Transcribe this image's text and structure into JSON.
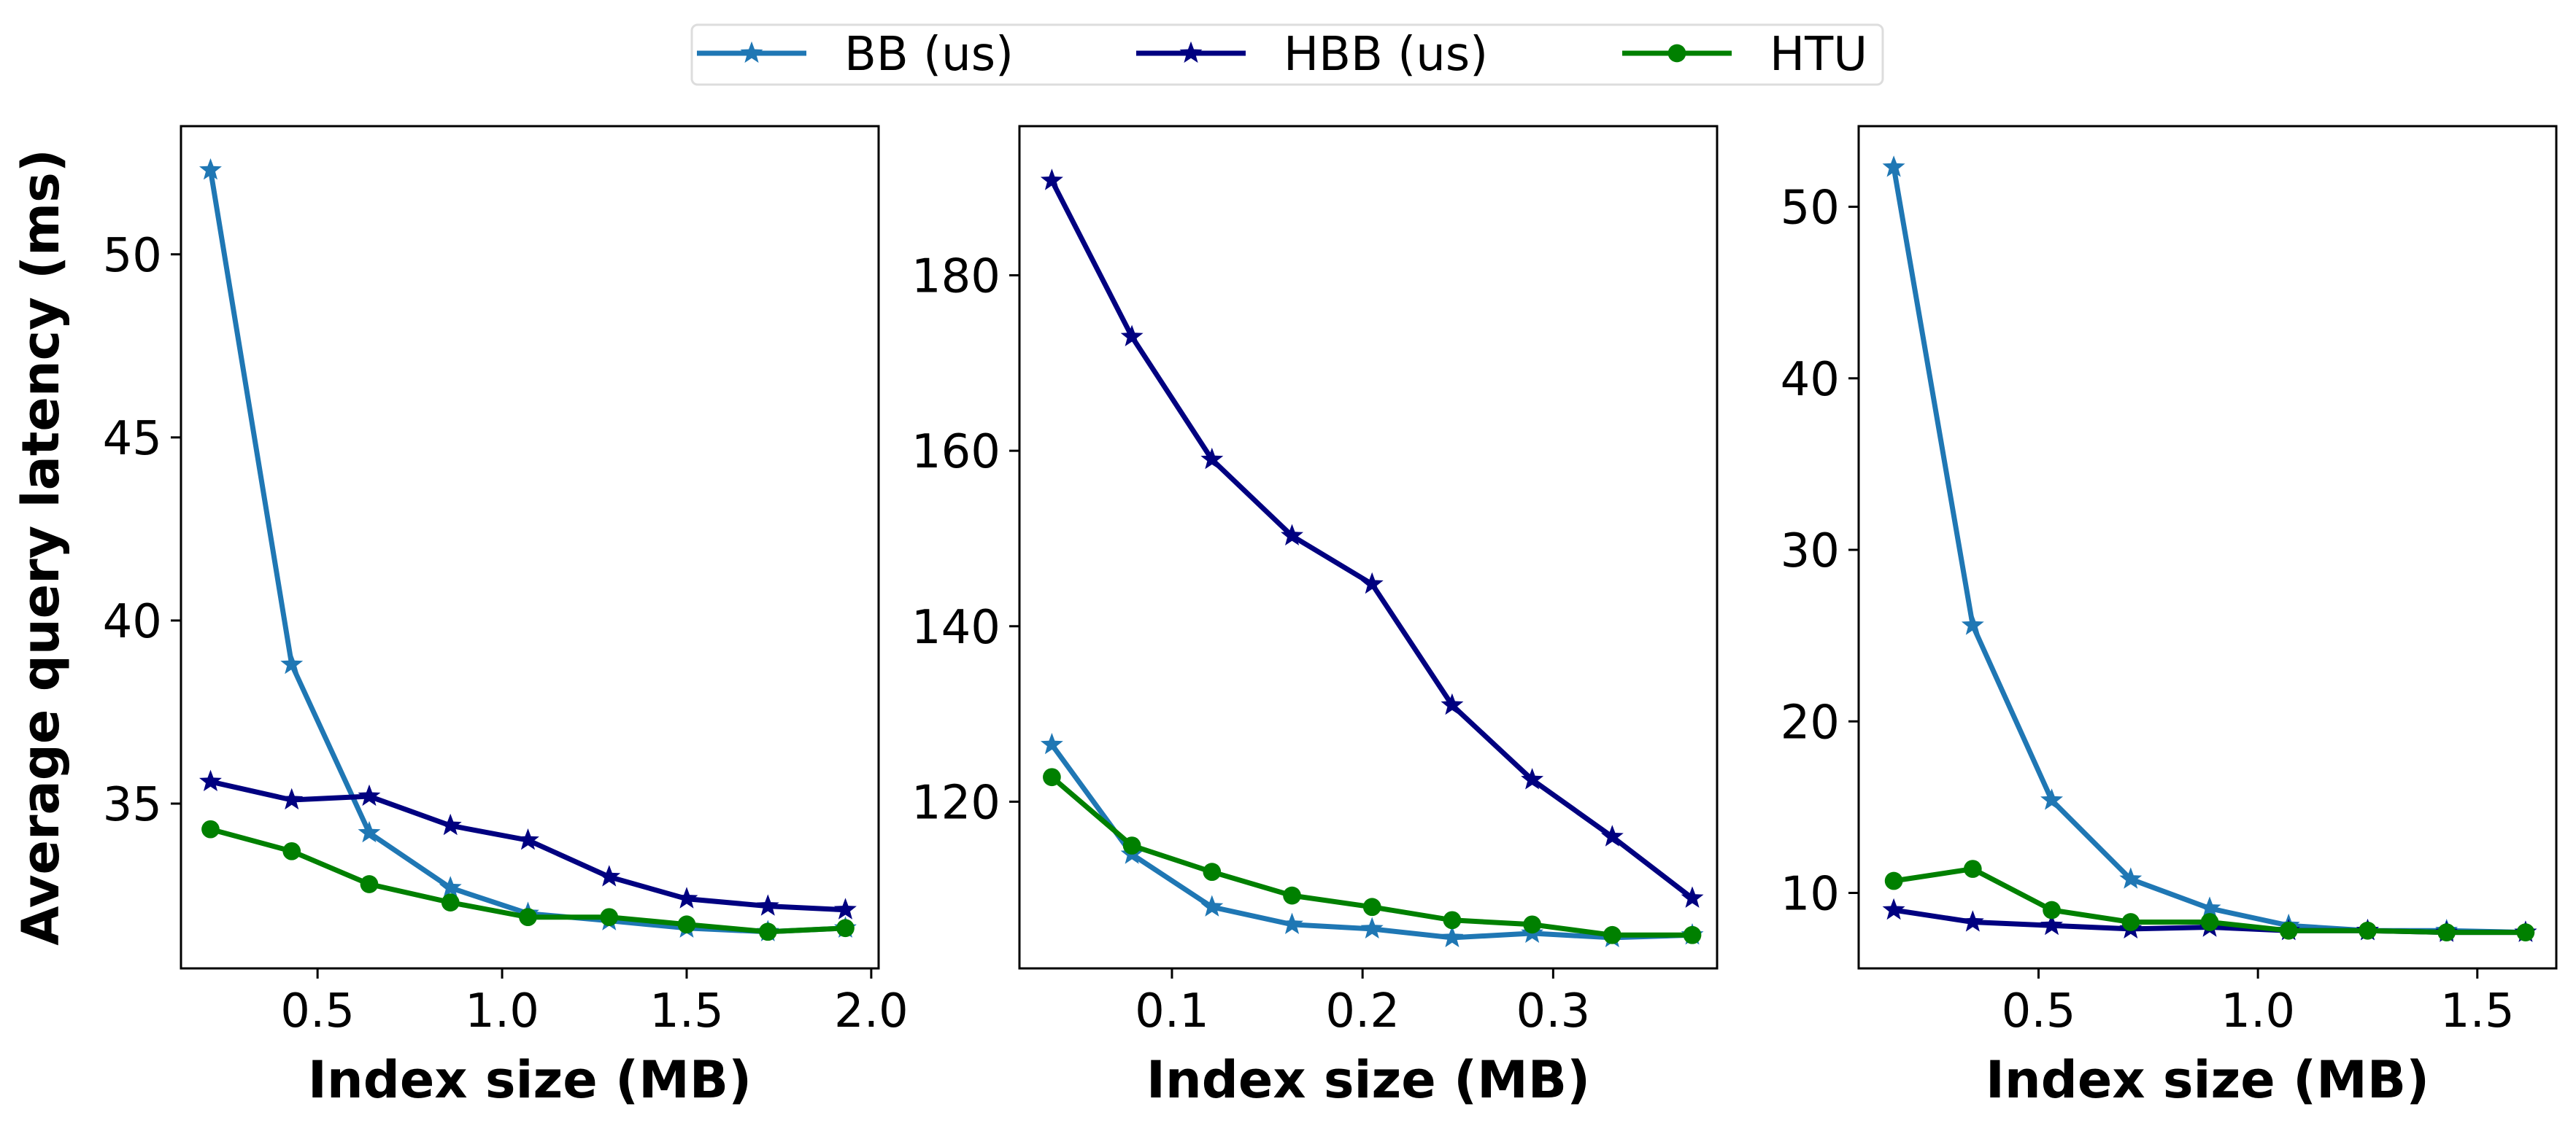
{
  "legend": {
    "placement": "top-center",
    "entries": [
      {
        "name": "BB (us)",
        "color": "#1f77b4",
        "marker": "star"
      },
      {
        "name": "HBB (us)",
        "color": "#000080",
        "marker": "star"
      },
      {
        "name": "HTU",
        "color": "#008000",
        "marker": "circle"
      }
    ]
  },
  "chart_data": [
    {
      "type": "line",
      "title": "",
      "xlabel": "Index size (MB)",
      "ylabel": "Average query latency (ms)",
      "xlim": [
        0.13,
        2.02
      ],
      "ylim": [
        30.5,
        53.5
      ],
      "xticks": [
        0.5,
        1.0,
        1.5,
        2.0
      ],
      "xtick_labels": [
        "0.5",
        "1.0",
        "1.5",
        "2.0"
      ],
      "yticks": [
        35,
        40,
        45,
        50
      ],
      "ytick_labels": [
        "35",
        "40",
        "45",
        "50"
      ],
      "grid": false,
      "series": [
        {
          "name": "BB (us)",
          "color": "#1f77b4",
          "marker": "star",
          "x": [
            0.21,
            0.43,
            0.64,
            0.86,
            1.07,
            1.29,
            1.5,
            1.72,
            1.93
          ],
          "y": [
            52.3,
            38.8,
            34.2,
            32.7,
            32.0,
            31.8,
            31.6,
            31.5,
            31.6
          ]
        },
        {
          "name": "HBB (us)",
          "color": "#000080",
          "marker": "star",
          "x": [
            0.21,
            0.43,
            0.64,
            0.86,
            1.07,
            1.29,
            1.5,
            1.72,
            1.93
          ],
          "y": [
            35.6,
            35.1,
            35.2,
            34.4,
            34.0,
            33.0,
            32.4,
            32.2,
            32.1
          ]
        },
        {
          "name": "HTU",
          "color": "#008000",
          "marker": "circle",
          "x": [
            0.21,
            0.43,
            0.64,
            0.86,
            1.07,
            1.29,
            1.5,
            1.72,
            1.93
          ],
          "y": [
            34.3,
            33.7,
            32.8,
            32.3,
            31.9,
            31.9,
            31.7,
            31.5,
            31.6
          ]
        }
      ]
    },
    {
      "type": "line",
      "title": "",
      "xlabel": "Index size (MB)",
      "ylabel": "",
      "xlim": [
        0.02,
        0.386
      ],
      "ylim": [
        101,
        197
      ],
      "xticks": [
        0.1,
        0.2,
        0.3
      ],
      "xtick_labels": [
        "0.1",
        "0.2",
        "0.3"
      ],
      "yticks": [
        120,
        140,
        160,
        180
      ],
      "ytick_labels": [
        "120",
        "140",
        "160",
        "180"
      ],
      "grid": false,
      "series": [
        {
          "name": "BB (us)",
          "color": "#1f77b4",
          "marker": "star",
          "x": [
            0.037,
            0.079,
            0.121,
            0.163,
            0.205,
            0.247,
            0.289,
            0.331,
            0.373
          ],
          "y": [
            126.5,
            114.0,
            108.0,
            106.0,
            105.5,
            104.5,
            105.0,
            104.5,
            104.8
          ]
        },
        {
          "name": "HBB (us)",
          "color": "#000080",
          "marker": "star",
          "x": [
            0.037,
            0.079,
            0.121,
            0.163,
            0.205,
            0.247,
            0.289,
            0.331,
            0.373
          ],
          "y": [
            190.8,
            173.0,
            159.0,
            150.3,
            144.8,
            131.0,
            122.5,
            116.0,
            109.0
          ]
        },
        {
          "name": "HTU",
          "color": "#008000",
          "marker": "circle",
          "x": [
            0.037,
            0.079,
            0.121,
            0.163,
            0.205,
            0.247,
            0.289,
            0.331,
            0.373
          ],
          "y": [
            122.8,
            115.0,
            112.0,
            109.3,
            108.0,
            106.5,
            106.0,
            104.8,
            104.8
          ]
        }
      ]
    },
    {
      "type": "line",
      "title": "",
      "xlabel": "Index size (MB)",
      "ylabel": "",
      "xlim": [
        0.09,
        1.68
      ],
      "ylim": [
        5.6,
        54.7
      ],
      "xticks": [
        0.5,
        1.0,
        1.5
      ],
      "xtick_labels": [
        "0.5",
        "1.0",
        "1.5"
      ],
      "yticks": [
        10,
        20,
        30,
        40,
        50
      ],
      "ytick_labels": [
        "10",
        "20",
        "30",
        "40",
        "50"
      ],
      "grid": false,
      "series": [
        {
          "name": "BB (us)",
          "color": "#1f77b4",
          "marker": "star",
          "x": [
            0.17,
            0.35,
            0.53,
            0.71,
            0.89,
            1.07,
            1.25,
            1.43,
            1.61
          ],
          "y": [
            52.3,
            25.6,
            15.4,
            10.8,
            9.1,
            8.1,
            7.8,
            7.8,
            7.7
          ]
        },
        {
          "name": "HBB (us)",
          "color": "#000080",
          "marker": "star",
          "x": [
            0.17,
            0.35,
            0.53,
            0.71,
            0.89,
            1.07,
            1.25,
            1.43,
            1.61
          ],
          "y": [
            9.0,
            8.3,
            8.1,
            7.9,
            8.0,
            7.8,
            7.8,
            7.7,
            7.7
          ]
        },
        {
          "name": "HTU",
          "color": "#008000",
          "marker": "circle",
          "x": [
            0.17,
            0.35,
            0.53,
            0.71,
            0.89,
            1.07,
            1.25,
            1.43,
            1.61
          ],
          "y": [
            10.7,
            11.4,
            9.0,
            8.3,
            8.3,
            7.8,
            7.8,
            7.7,
            7.7
          ]
        }
      ]
    }
  ]
}
